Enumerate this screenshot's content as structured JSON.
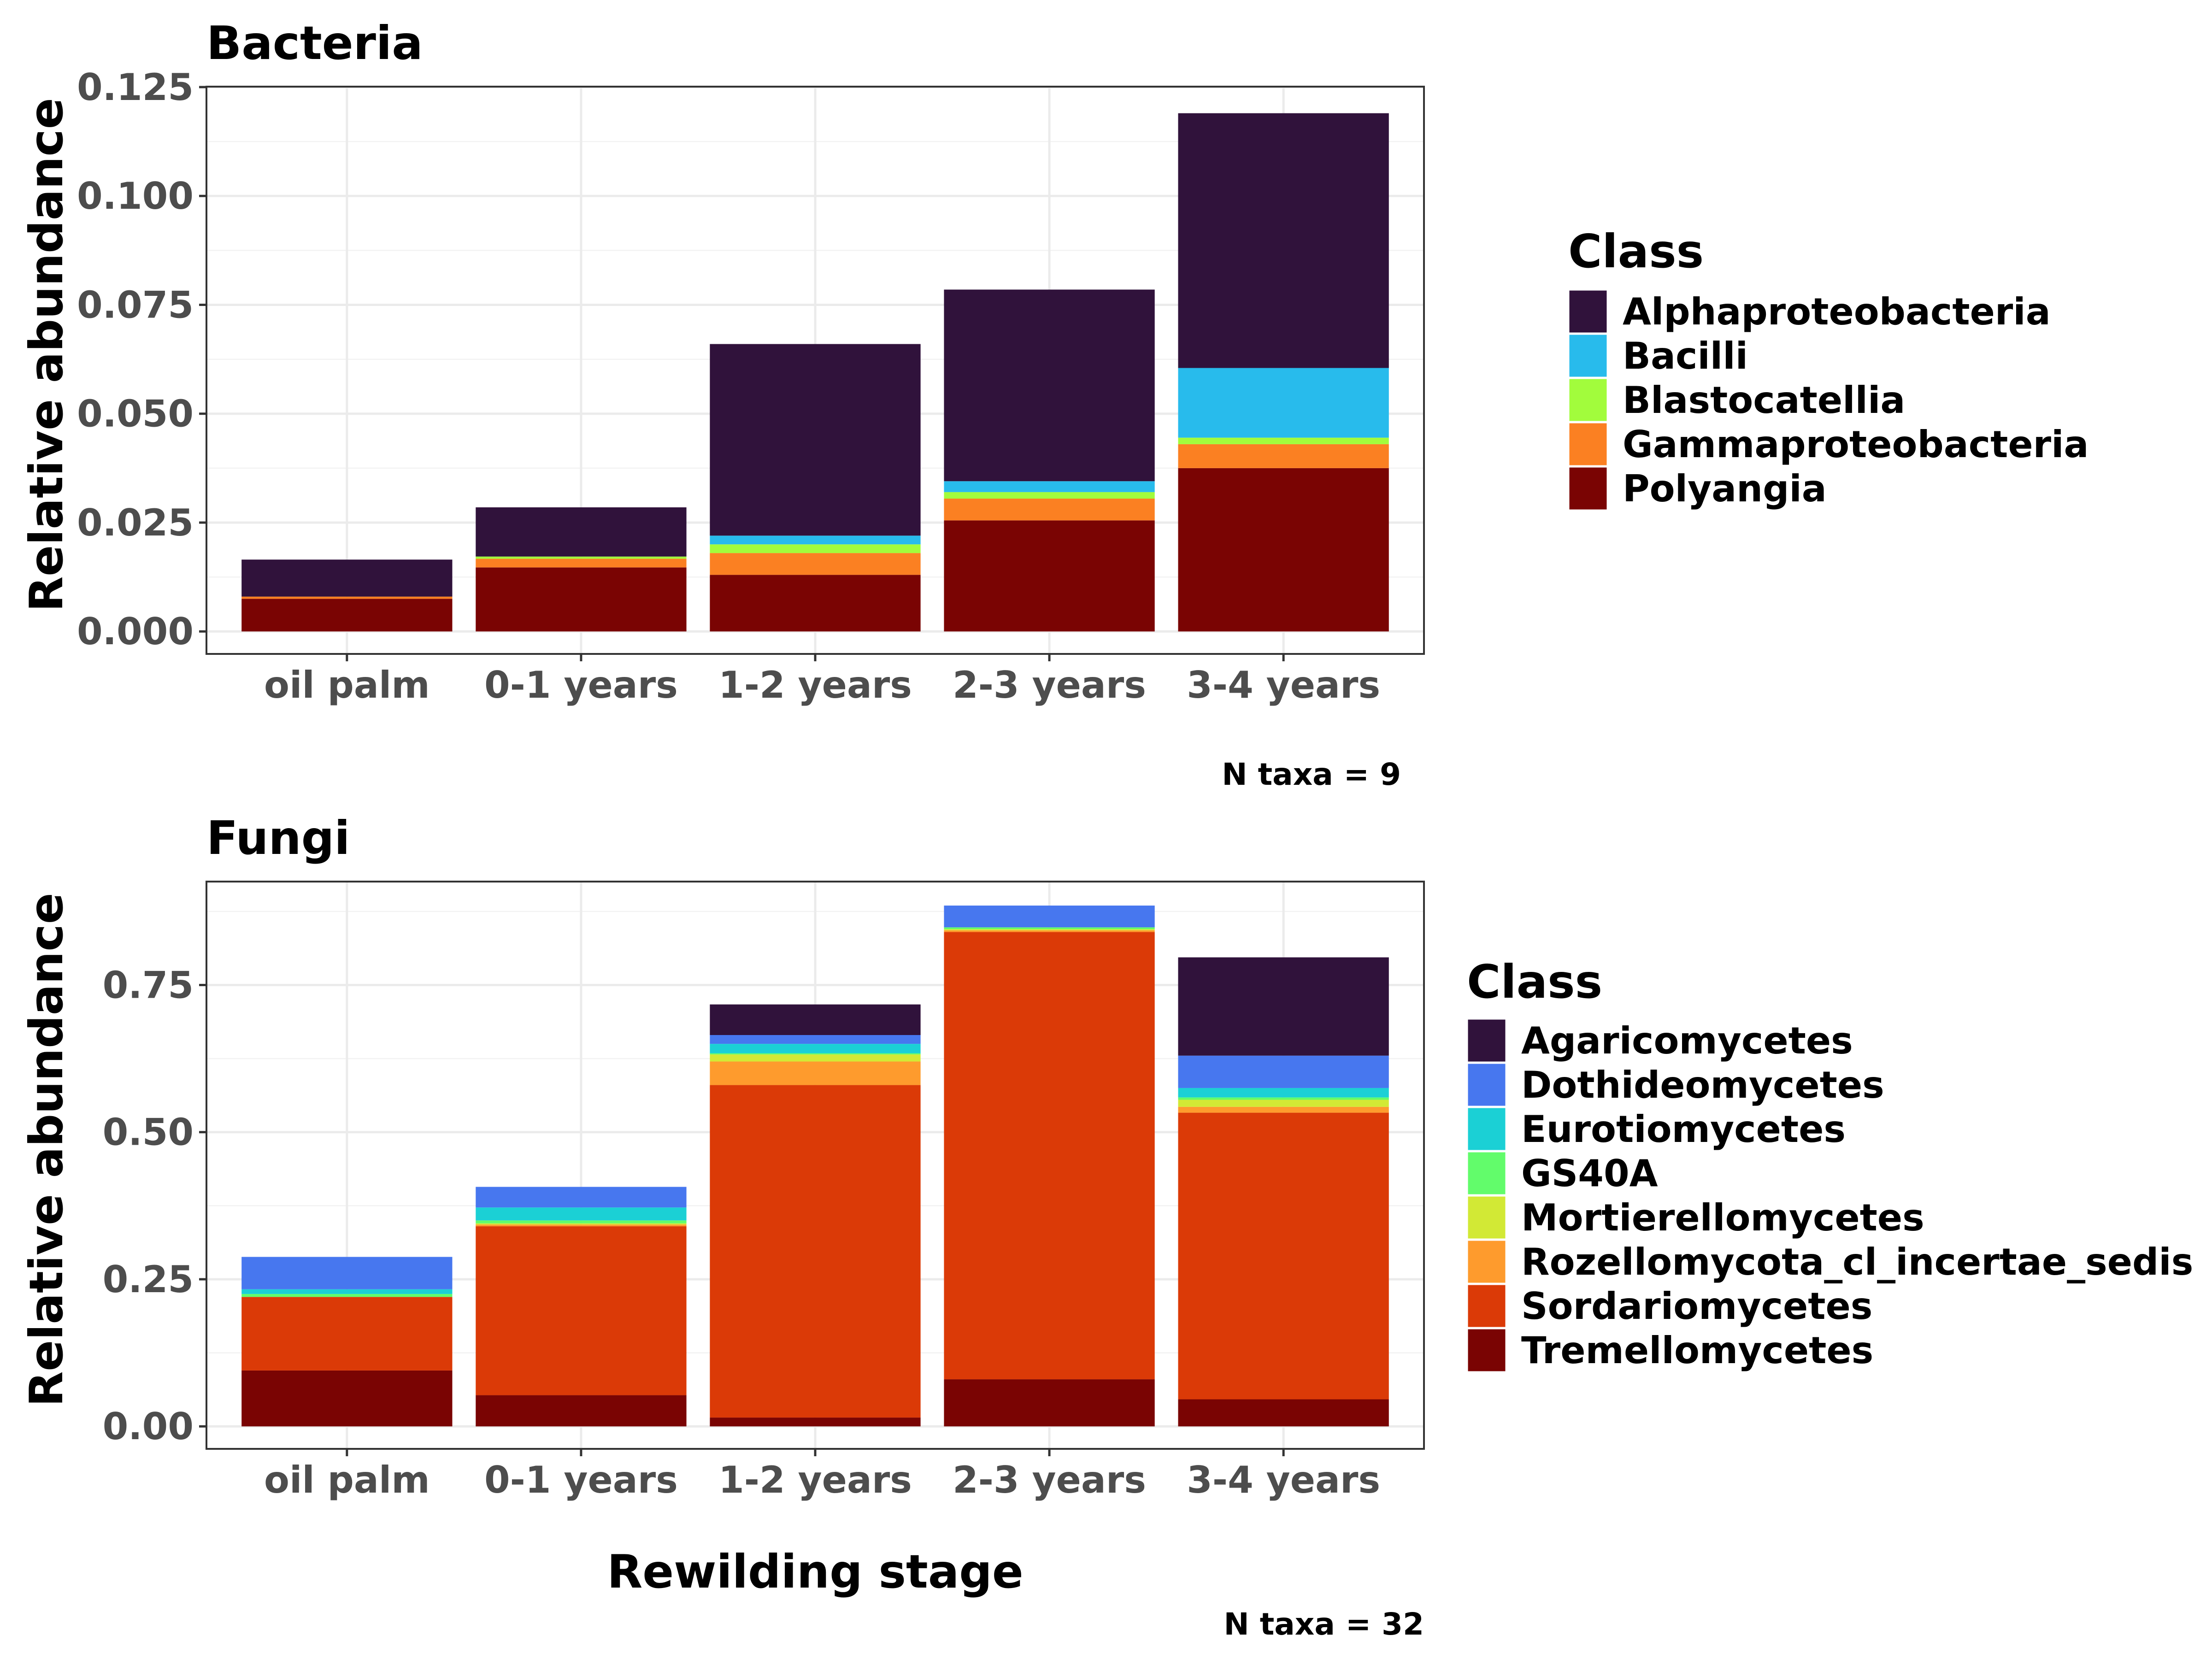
{
  "figure": {
    "xlabel": "Rewilding stage"
  },
  "chart_data": [
    {
      "type": "bar",
      "stacked": true,
      "title": "Bacteria",
      "xlabel": "",
      "ylabel": "Relative abundance",
      "ylim": [
        0,
        0.125
      ],
      "yticks": [
        0,
        0.025,
        0.05,
        0.075,
        0.1,
        0.125
      ],
      "ytick_labels": [
        "0.000",
        "0.025",
        "0.050",
        "0.075",
        "0.100",
        "0.125"
      ],
      "grid": true,
      "categories": [
        "oil palm",
        "0-1 years",
        "1-2 years",
        "2-3 years",
        "3-4 years"
      ],
      "legend_title": "Class",
      "legend_position": "right",
      "note": "N taxa =  9",
      "series": [
        {
          "name": "Alphaproteobacteria",
          "color": "#30123b",
          "values": [
            0.0085,
            0.0113,
            0.044,
            0.044,
            0.0585
          ]
        },
        {
          "name": "Bacilli",
          "color": "#28bbec",
          "values": [
            0.0,
            0.0,
            0.002,
            0.0025,
            0.016
          ]
        },
        {
          "name": "Blastocatellia",
          "color": "#a2fc3c",
          "values": [
            0.0,
            0.0005,
            0.002,
            0.0015,
            0.0015
          ]
        },
        {
          "name": "Gammaproteobacteria",
          "color": "#fb8022",
          "values": [
            0.0005,
            0.002,
            0.005,
            0.005,
            0.0055
          ]
        },
        {
          "name": "Polyangia",
          "color": "#7a0403",
          "values": [
            0.0075,
            0.0147,
            0.013,
            0.0255,
            0.0375
          ]
        }
      ]
    },
    {
      "type": "bar",
      "stacked": true,
      "title": "Fungi",
      "xlabel": "Rewilding stage",
      "ylabel": "Relative abundance",
      "ylim": [
        0,
        0.925
      ],
      "yticks": [
        0,
        0.25,
        0.5,
        0.75
      ],
      "ytick_labels": [
        "0.00",
        "0.25",
        "0.50",
        "0.75"
      ],
      "grid": true,
      "categories": [
        "oil palm",
        "0-1 years",
        "1-2 years",
        "2-3 years",
        "3-4 years"
      ],
      "legend_title": "Class",
      "legend_position": "right",
      "note": "N taxa =  32",
      "series": [
        {
          "name": "Agaricomycetes",
          "color": "#30123b",
          "values": [
            0.0,
            0.0,
            0.052,
            0.0,
            0.167
          ]
        },
        {
          "name": "Dothideomycetes",
          "color": "#4777ef",
          "values": [
            0.055,
            0.035,
            0.015,
            0.037,
            0.055
          ]
        },
        {
          "name": "Eurotiomycetes",
          "color": "#1bd0d5",
          "values": [
            0.008,
            0.022,
            0.016,
            0.0,
            0.016
          ]
        },
        {
          "name": "GS40A",
          "color": "#62fc6b",
          "values": [
            0.005,
            0.005,
            0.002,
            0.003,
            0.004
          ]
        },
        {
          "name": "Mortierellomycetes",
          "color": "#d2e935",
          "values": [
            0.0,
            0.002,
            0.012,
            0.002,
            0.012
          ]
        },
        {
          "name": "Rozellomycota_cl_incertae_sedis",
          "color": "#fe9b2d",
          "values": [
            0.0,
            0.003,
            0.04,
            0.003,
            0.01
          ]
        },
        {
          "name": "Sordariomycetes",
          "color": "#db3a07",
          "values": [
            0.125,
            0.287,
            0.565,
            0.76,
            0.487
          ]
        },
        {
          "name": "Tremellomycetes",
          "color": "#7a0403",
          "values": [
            0.095,
            0.053,
            0.015,
            0.08,
            0.046
          ]
        }
      ]
    }
  ]
}
